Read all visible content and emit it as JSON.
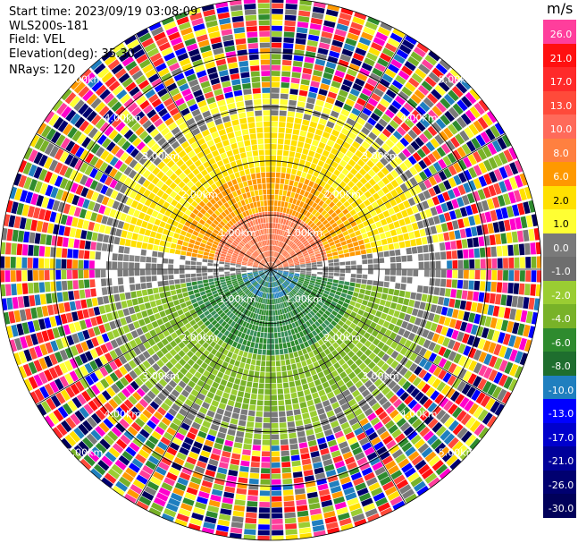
{
  "header": {
    "start_time": "Start time: 2023/09/19 03:08:09",
    "instrument": "WLS200s-181",
    "field": "Field: VEL",
    "elevation": "Elevation(deg): 35.30",
    "nrays": "NRays: 120"
  },
  "colorbar": {
    "unit": "m/s",
    "ticks": [
      "26.0",
      "21.0",
      "17.0",
      "13.0",
      "10.0",
      "8.0",
      "6.0",
      "2.0",
      "1.0",
      "0.0",
      "-1.0",
      "-2.0",
      "-4.0",
      "-6.0",
      "-8.0",
      "-10.0",
      "-13.0",
      "-17.0",
      "-21.0",
      "-26.0",
      "-30.0"
    ],
    "colors": [
      "#ff3e9c",
      "#ff1010",
      "#ff2a2a",
      "#ff4a3a",
      "#ff6a5a",
      "#ff8040",
      "#ff9900",
      "#ffe000",
      "#ffff33",
      "#7a7a7a",
      "#6e6e6e",
      "#9acd32",
      "#78b228",
      "#2e8b2e",
      "#1e6e2e",
      "#1f7fbf",
      "#0000ff",
      "#0000cc",
      "#000099",
      "#000070",
      "#00005a"
    ]
  },
  "chart_data": {
    "type": "ppi",
    "title": "",
    "field": "VEL",
    "elevation_deg": 35.3,
    "nrays": 120,
    "range_rings_km": [
      1.0,
      2.0,
      3.0,
      4.0,
      5.0
    ],
    "max_range_km": 5.0,
    "range_ring_labels": [
      "1.00km",
      "2.00km",
      "3.00km",
      "4.00km",
      "5.00km"
    ],
    "pattern": {
      "north_half": "positive velocities (orange near center, yellow further out)",
      "south_half": "negative velocities (blue/green near center, lighter green further out)",
      "beyond_km": 3.2,
      "beyond_description": "noisy multicolor returns"
    }
  }
}
